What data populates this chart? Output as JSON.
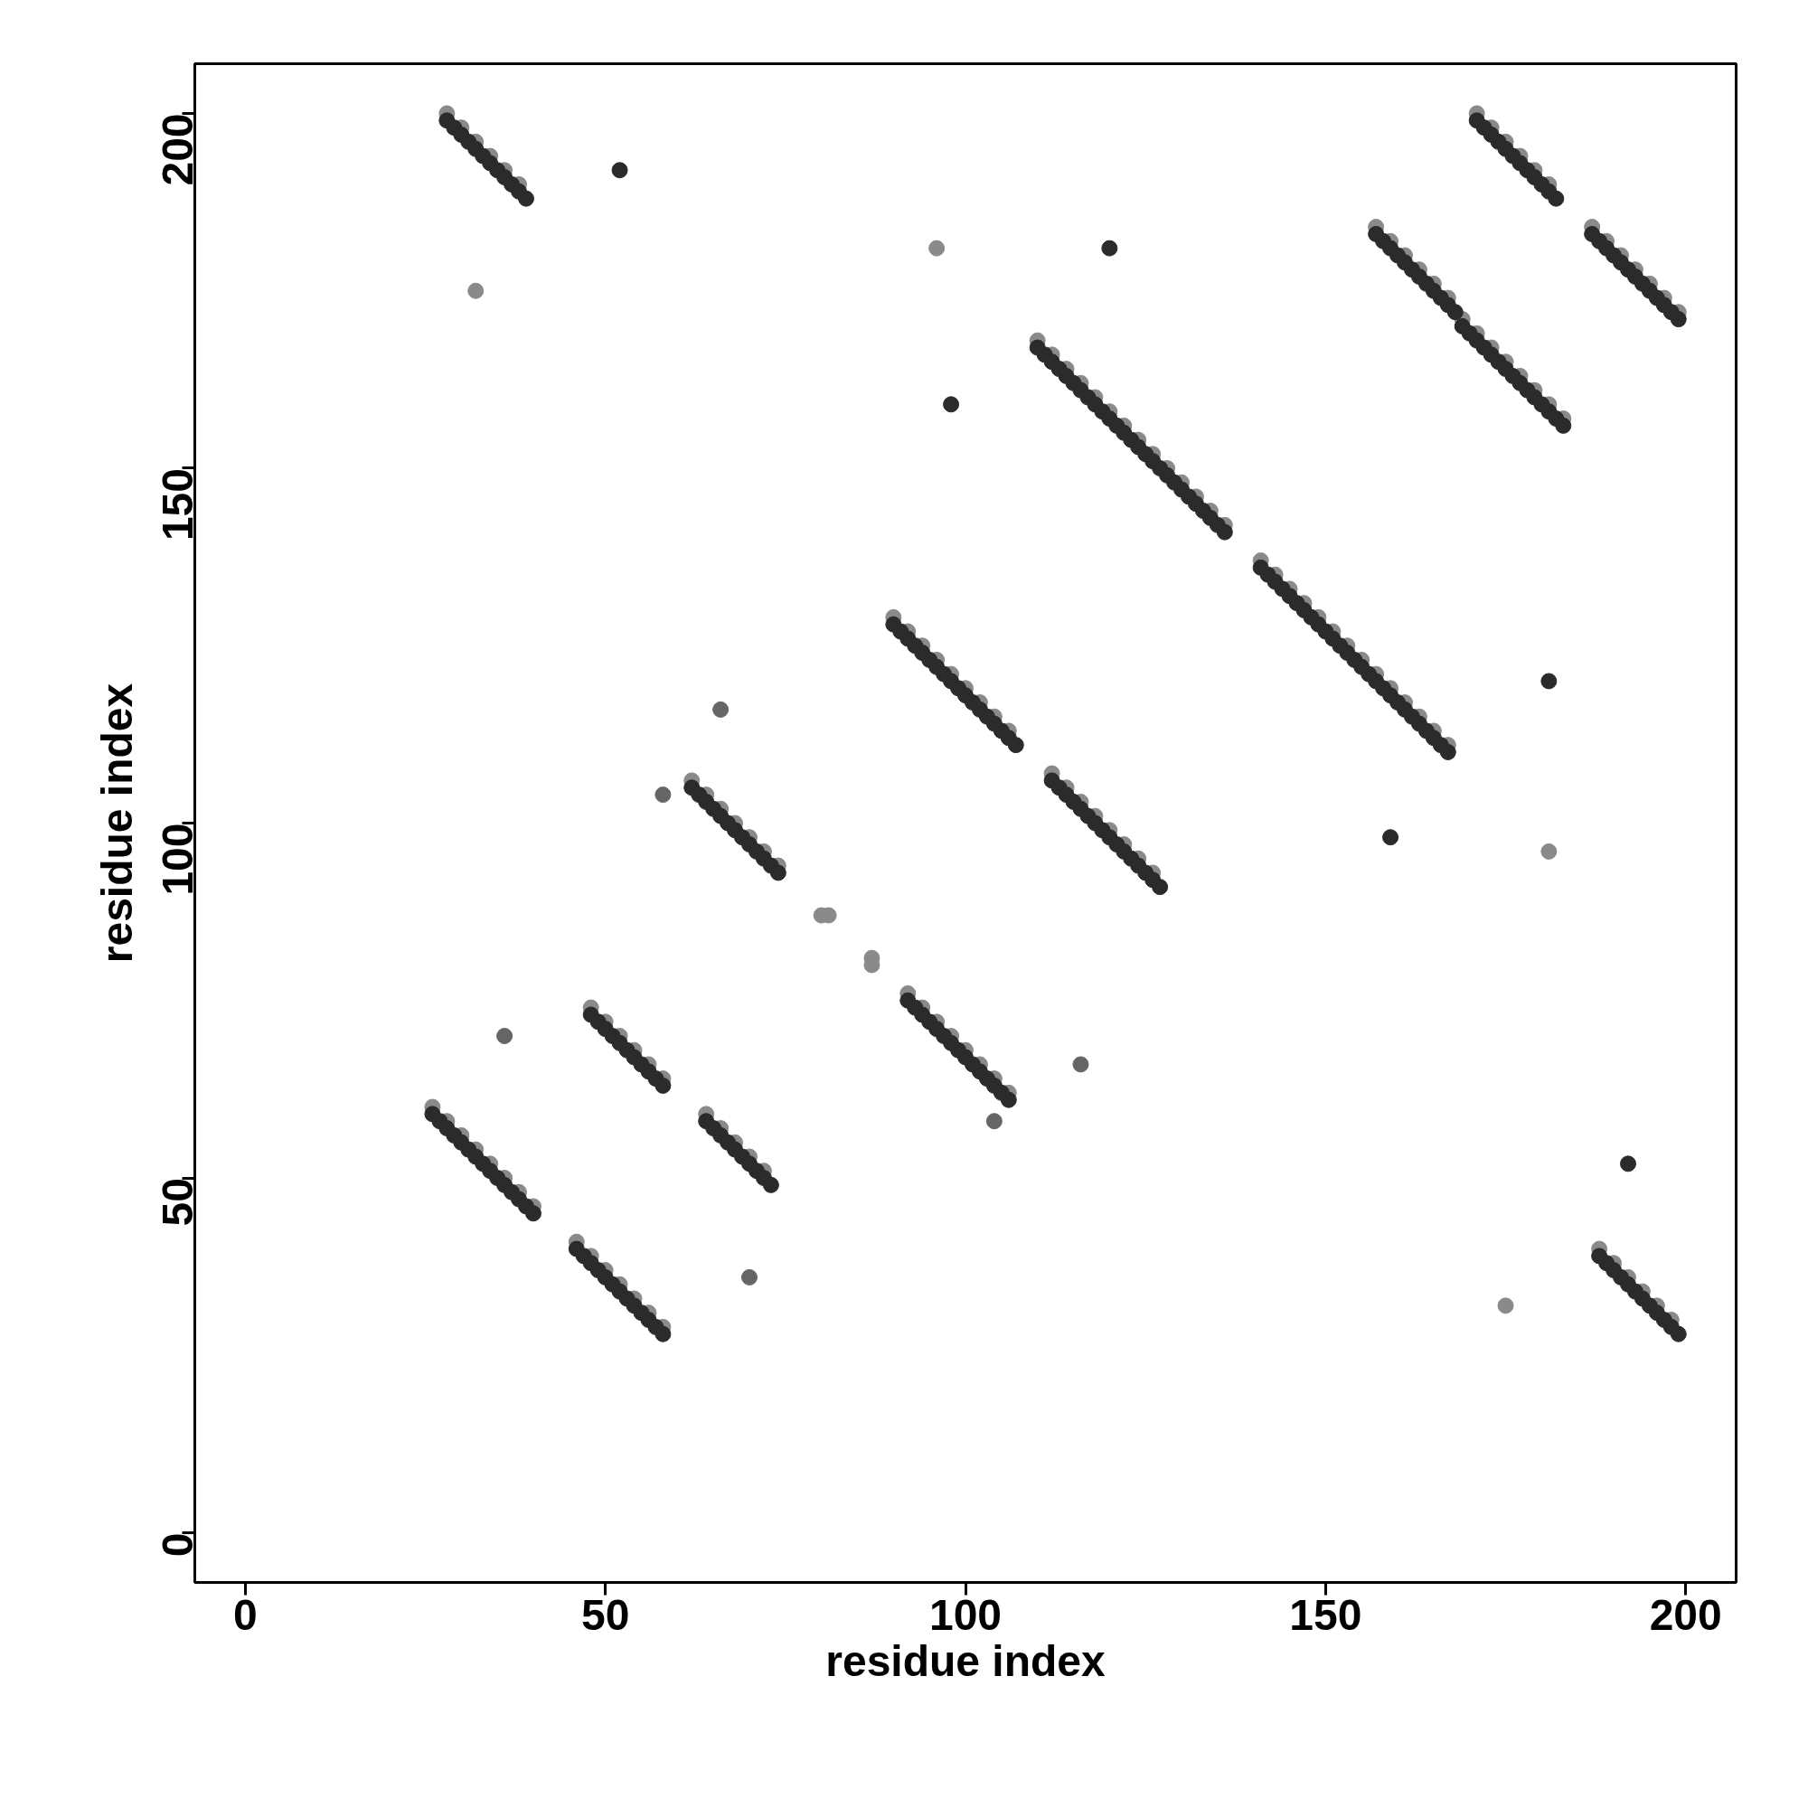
{
  "chart_data": {
    "type": "scatter",
    "xlabel": "residue index",
    "ylabel": "residue index",
    "xlim": [
      -7,
      207
    ],
    "ylim": [
      -7,
      207
    ],
    "xticks": [
      0,
      50,
      100,
      150,
      200
    ],
    "yticks": [
      0,
      50,
      100,
      150,
      200
    ],
    "grid": false,
    "marker": "circle",
    "series": [
      {
        "color": "#8a8a8a",
        "x": [
          28,
          30,
          32,
          34,
          36,
          38,
          26,
          28,
          30,
          32,
          34,
          36,
          38,
          40,
          46,
          48,
          50,
          52,
          54,
          56,
          58,
          48,
          50,
          52,
          54,
          56,
          58,
          64,
          66,
          68,
          70,
          72,
          62,
          64,
          66,
          68,
          70,
          72,
          74,
          90,
          92,
          94,
          96,
          98,
          100,
          102,
          104,
          106,
          92,
          94,
          96,
          98,
          100,
          102,
          104,
          106,
          112,
          114,
          116,
          118,
          120,
          122,
          124,
          126,
          110,
          112,
          114,
          116,
          118,
          120,
          122,
          124,
          126,
          128,
          130,
          132,
          134,
          136,
          141,
          143,
          145,
          147,
          149,
          151,
          153,
          155,
          157,
          159,
          161,
          163,
          165,
          167,
          157,
          159,
          161,
          163,
          165,
          167,
          171,
          173,
          175,
          177,
          179,
          181,
          169,
          171,
          173,
          175,
          177,
          179,
          181,
          183,
          187,
          189,
          191,
          193,
          195,
          197,
          199,
          188,
          190,
          192,
          194,
          196,
          198,
          32,
          96,
          181,
          80,
          81,
          87,
          87,
          175
        ],
        "values": [
          200,
          198,
          196,
          194,
          192,
          190,
          60,
          58,
          56,
          54,
          52,
          50,
          48,
          46,
          41,
          39,
          37,
          35,
          33,
          31,
          29,
          74,
          72,
          70,
          68,
          66,
          64,
          59,
          57,
          55,
          53,
          51,
          106,
          104,
          102,
          100,
          98,
          96,
          94,
          129,
          127,
          125,
          123,
          121,
          119,
          117,
          115,
          113,
          76,
          74,
          72,
          70,
          68,
          66,
          64,
          62,
          107,
          105,
          103,
          101,
          99,
          97,
          95,
          93,
          168,
          166,
          164,
          162,
          160,
          158,
          156,
          154,
          152,
          150,
          148,
          146,
          144,
          142,
          137,
          135,
          133,
          131,
          129,
          127,
          125,
          123,
          121,
          119,
          117,
          115,
          113,
          111,
          184,
          182,
          180,
          178,
          176,
          174,
          200,
          198,
          196,
          194,
          192,
          190,
          171,
          169,
          167,
          165,
          163,
          161,
          159,
          157,
          184,
          182,
          180,
          178,
          176,
          174,
          172,
          40,
          38,
          36,
          34,
          32,
          30,
          175,
          181,
          96,
          87,
          87,
          81,
          80,
          32
        ]
      },
      {
        "color": "#666666",
        "x": [
          66,
          58,
          36,
          116,
          104,
          70
        ],
        "values": [
          116,
          104,
          70,
          66,
          58,
          36
        ]
      },
      {
        "color": "#2b2b2b",
        "x": [
          28,
          29,
          30,
          31,
          32,
          33,
          34,
          35,
          36,
          37,
          38,
          39,
          26,
          27,
          28,
          29,
          30,
          31,
          32,
          33,
          34,
          35,
          36,
          37,
          38,
          39,
          40,
          46,
          47,
          48,
          49,
          50,
          51,
          52,
          53,
          54,
          55,
          56,
          57,
          58,
          48,
          49,
          50,
          51,
          52,
          53,
          54,
          55,
          56,
          57,
          58,
          64,
          65,
          66,
          67,
          68,
          69,
          70,
          71,
          72,
          73,
          62,
          63,
          64,
          65,
          66,
          67,
          68,
          69,
          70,
          71,
          72,
          73,
          74,
          90,
          91,
          92,
          93,
          94,
          95,
          96,
          97,
          98,
          99,
          100,
          101,
          102,
          103,
          104,
          105,
          106,
          107,
          92,
          93,
          94,
          95,
          96,
          97,
          98,
          99,
          100,
          101,
          102,
          103,
          104,
          105,
          106,
          112,
          113,
          114,
          115,
          116,
          117,
          118,
          119,
          120,
          121,
          122,
          123,
          124,
          125,
          126,
          127,
          110,
          111,
          112,
          113,
          114,
          115,
          116,
          117,
          118,
          119,
          120,
          121,
          122,
          123,
          124,
          125,
          126,
          127,
          128,
          129,
          130,
          131,
          132,
          133,
          134,
          135,
          136,
          141,
          142,
          143,
          144,
          145,
          146,
          147,
          148,
          149,
          150,
          151,
          152,
          153,
          154,
          155,
          156,
          157,
          158,
          159,
          160,
          161,
          162,
          163,
          164,
          165,
          166,
          167,
          157,
          158,
          159,
          160,
          161,
          162,
          163,
          164,
          165,
          166,
          167,
          168,
          171,
          172,
          173,
          174,
          175,
          176,
          177,
          178,
          179,
          180,
          181,
          182,
          169,
          170,
          171,
          172,
          173,
          174,
          175,
          176,
          177,
          178,
          179,
          180,
          181,
          182,
          183,
          187,
          188,
          189,
          190,
          191,
          192,
          193,
          194,
          195,
          196,
          197,
          198,
          199,
          188,
          189,
          190,
          191,
          192,
          193,
          194,
          195,
          196,
          197,
          198,
          199,
          52,
          120,
          98,
          181,
          159,
          192
        ],
        "values": [
          199,
          198,
          197,
          196,
          195,
          194,
          193,
          192,
          191,
          190,
          189,
          188,
          59,
          58,
          57,
          56,
          55,
          54,
          53,
          52,
          51,
          50,
          49,
          48,
          47,
          46,
          45,
          40,
          39,
          38,
          37,
          36,
          35,
          34,
          33,
          32,
          31,
          30,
          29,
          28,
          73,
          72,
          71,
          70,
          69,
          68,
          67,
          66,
          65,
          64,
          63,
          58,
          57,
          56,
          55,
          54,
          53,
          52,
          51,
          50,
          49,
          105,
          104,
          103,
          102,
          101,
          100,
          99,
          98,
          97,
          96,
          95,
          94,
          93,
          128,
          127,
          126,
          125,
          124,
          123,
          122,
          121,
          120,
          119,
          118,
          117,
          116,
          115,
          114,
          113,
          112,
          111,
          75,
          74,
          73,
          72,
          71,
          70,
          69,
          68,
          67,
          66,
          65,
          64,
          63,
          62,
          61,
          106,
          105,
          104,
          103,
          102,
          101,
          100,
          99,
          98,
          97,
          96,
          95,
          94,
          93,
          92,
          91,
          167,
          166,
          165,
          164,
          163,
          162,
          161,
          160,
          159,
          158,
          157,
          156,
          155,
          154,
          153,
          152,
          151,
          150,
          149,
          148,
          147,
          146,
          145,
          144,
          143,
          142,
          141,
          136,
          135,
          134,
          133,
          132,
          131,
          130,
          129,
          128,
          127,
          126,
          125,
          124,
          123,
          122,
          121,
          120,
          119,
          118,
          117,
          116,
          115,
          114,
          113,
          112,
          111,
          110,
          183,
          182,
          181,
          180,
          179,
          178,
          177,
          176,
          175,
          174,
          173,
          172,
          199,
          198,
          197,
          196,
          195,
          194,
          193,
          192,
          191,
          190,
          189,
          188,
          170,
          169,
          168,
          167,
          166,
          165,
          164,
          163,
          162,
          161,
          160,
          159,
          158,
          157,
          156,
          183,
          182,
          181,
          180,
          179,
          178,
          177,
          176,
          175,
          174,
          173,
          172,
          171,
          39,
          38,
          37,
          36,
          35,
          34,
          33,
          32,
          31,
          30,
          29,
          28,
          192,
          181,
          159,
          120,
          98,
          52
        ]
      }
    ]
  }
}
